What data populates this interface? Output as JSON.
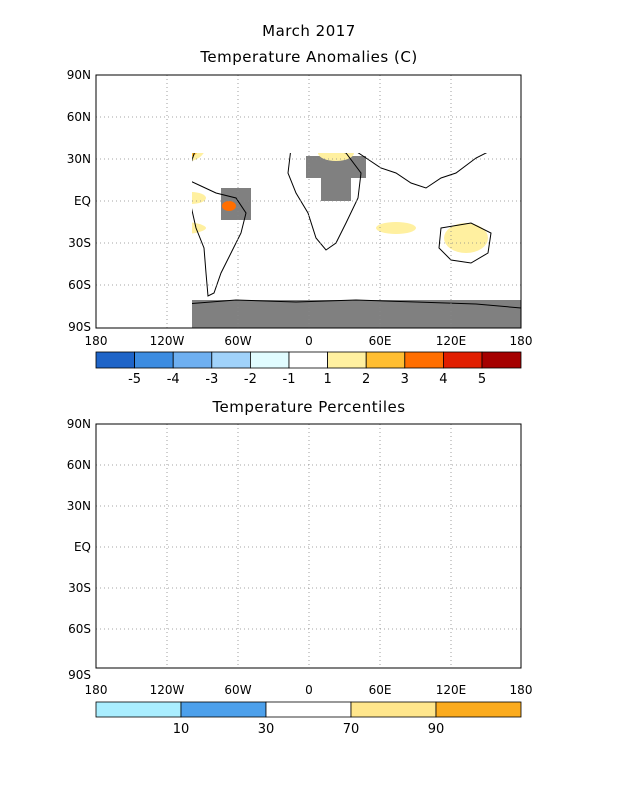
{
  "header": {
    "title": "March 2017",
    "subtitle": "Temperature Anomalies (C)"
  },
  "panel2": {
    "title": "Temperature Percentiles"
  },
  "axes": {
    "lat_labels": [
      "90N",
      "60N",
      "30N",
      "EQ",
      "30S",
      "60S",
      "90S"
    ],
    "lon_labels": [
      "180",
      "120W",
      "60W",
      "0",
      "60E",
      "120E",
      "180"
    ]
  },
  "anomaly_colorbar": {
    "labels": [
      "-5",
      "-4",
      "-3",
      "-2",
      "-1",
      "1",
      "2",
      "3",
      "4",
      "5"
    ],
    "colors": [
      "#1e64c8",
      "#3c8ce1",
      "#6eaff0",
      "#a0d2fa",
      "#e1fcff",
      "#ffffff",
      "#fff0a0",
      "#ffbe32",
      "#ff6e00",
      "#e11e00",
      "#a50000"
    ]
  },
  "percentile_colorbar": {
    "labels": [
      "10",
      "30",
      "70",
      "90"
    ],
    "colors": [
      "#aaeeff",
      "#4da0eb",
      "#ffffff",
      "#ffe68c",
      "#fbab1e"
    ]
  },
  "colors": {
    "missing": "#808080",
    "coast": "#000000"
  }
}
